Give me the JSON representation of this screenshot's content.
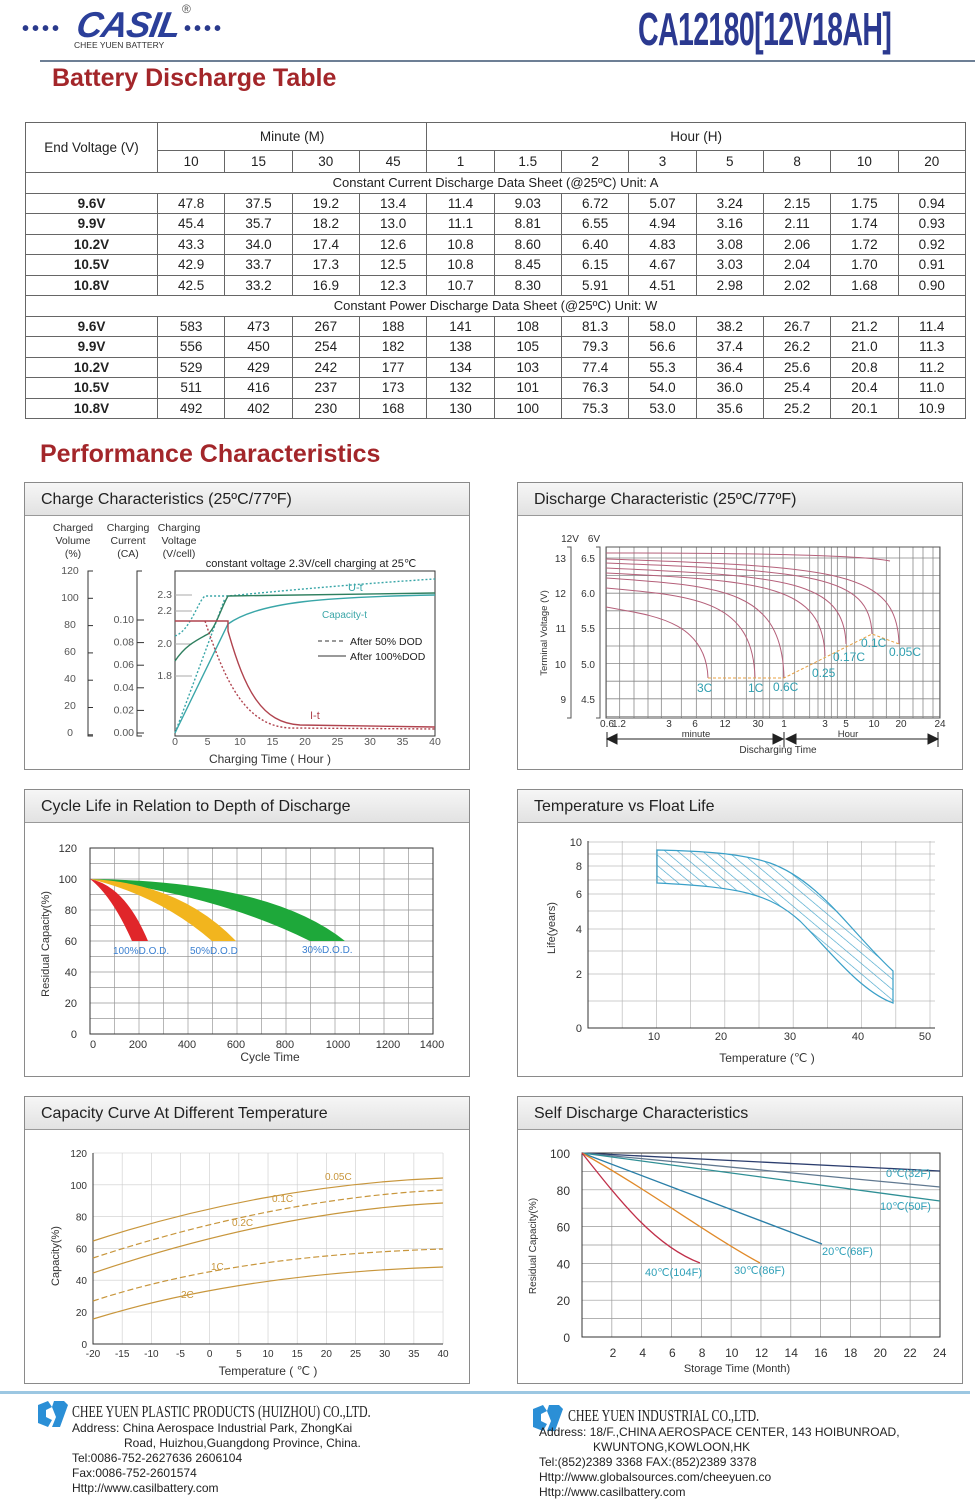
{
  "header": {
    "brand": "CASIL",
    "brand_sub": "CHEE YUEN BATTERY",
    "registered": "®",
    "model": "CA12180[12V18AH]"
  },
  "discharge_table": {
    "title": "Battery Discharge Table",
    "end_voltage_label": "End Voltage  (V)",
    "minute_label": "Minute (M)",
    "hour_label": "Hour (H)",
    "minute_columns": [
      "10",
      "15",
      "30",
      "45"
    ],
    "hour_columns": [
      "1",
      "1.5",
      "2",
      "3",
      "5",
      "8",
      "10",
      "20"
    ],
    "sections": [
      {
        "title": "Constant Current Discharge Data Sheet   (@25ºC)   Unit: A",
        "rows": [
          {
            "v": "9.6V",
            "vals": [
              "47.8",
              "37.5",
              "19.2",
              "13.4",
              "11.4",
              "9.03",
              "6.72",
              "5.07",
              "3.24",
              "2.15",
              "1.75",
              "0.94"
            ]
          },
          {
            "v": "9.9V",
            "vals": [
              "45.4",
              "35.7",
              "18.2",
              "13.0",
              "11.1",
              "8.81",
              "6.55",
              "4.94",
              "3.16",
              "2.11",
              "1.74",
              "0.93"
            ]
          },
          {
            "v": "10.2V",
            "vals": [
              "43.3",
              "34.0",
              "17.4",
              "12.6",
              "10.8",
              "8.60",
              "6.40",
              "4.83",
              "3.08",
              "2.06",
              "1.72",
              "0.92"
            ]
          },
          {
            "v": "10.5V",
            "vals": [
              "42.9",
              "33.7",
              "17.3",
              "12.5",
              "10.8",
              "8.45",
              "6.15",
              "4.67",
              "3.03",
              "2.04",
              "1.70",
              "0.91"
            ]
          },
          {
            "v": "10.8V",
            "vals": [
              "42.5",
              "33.2",
              "16.9",
              "12.3",
              "10.7",
              "8.30",
              "5.91",
              "4.51",
              "2.98",
              "2.02",
              "1.68",
              "0.90"
            ]
          }
        ]
      },
      {
        "title": "Constant Power Discharge Data Sheet   (@25ºC)   Unit: W",
        "rows": [
          {
            "v": "9.6V",
            "vals": [
              "583",
              "473",
              "267",
              "188",
              "141",
              "108",
              "81.3",
              "58.0",
              "38.2",
              "26.7",
              "21.2",
              "11.4"
            ]
          },
          {
            "v": "9.9V",
            "vals": [
              "556",
              "450",
              "254",
              "182",
              "138",
              "105",
              "79.3",
              "56.6",
              "37.4",
              "26.2",
              "21.0",
              "11.3"
            ]
          },
          {
            "v": "10.2V",
            "vals": [
              "529",
              "429",
              "242",
              "177",
              "134",
              "103",
              "77.4",
              "55.3",
              "36.4",
              "25.6",
              "20.8",
              "11.2"
            ]
          },
          {
            "v": "10.5V",
            "vals": [
              "511",
              "416",
              "237",
              "173",
              "132",
              "101",
              "76.3",
              "54.0",
              "36.0",
              "25.4",
              "20.4",
              "11.0"
            ]
          },
          {
            "v": "10.8V",
            "vals": [
              "492",
              "402",
              "230",
              "168",
              "130",
              "100",
              "75.3",
              "53.0",
              "35.6",
              "25.2",
              "20.1",
              "10.9"
            ]
          }
        ]
      }
    ]
  },
  "performance_title": "Performance Characteristics",
  "charts": {
    "charge": {
      "title": "Charge Characteristics (25ºC/77ºF)",
      "col_heads": [
        [
          "Charged",
          "Volume",
          "(%)"
        ],
        [
          "Charging",
          "Current",
          "(CA)"
        ],
        [
          "Charging",
          "Voltage",
          "(V/cell)"
        ]
      ],
      "note": "constant voltage 2.3V/cell charging at 25℃",
      "volume_ticks": [
        "120",
        "100",
        "80",
        "60",
        "40",
        "20",
        "0"
      ],
      "current_ticks": [
        "0.10",
        "0.08",
        "0.06",
        "0.04",
        "0.02",
        "0.00"
      ],
      "voltage_ticks": [
        "2.3",
        "2.2",
        "2.0",
        "1.8"
      ],
      "x_ticks": [
        "0",
        "5",
        "10",
        "15",
        "20",
        "25",
        "30",
        "35",
        "40"
      ],
      "xlabel": "Charging Time ( Hour )",
      "label_vt": "U-t",
      "label_cap": "Capacity-t",
      "label_it": "I-t",
      "legend": [
        "After 50% DOD",
        "After 100%DOD"
      ]
    },
    "discharge": {
      "title": "Discharge Characteristic (25ºC/77ºF)",
      "head_12v": "12V",
      "head_6v": "6V",
      "y12_ticks": [
        "13",
        "12",
        "11",
        "10",
        "9"
      ],
      "y6_ticks": [
        "6.5",
        "6.0",
        "5.5",
        "5.0",
        "4.5"
      ],
      "ylabel": "Terminal Voltage (V)",
      "x_ticks": [
        "0.6",
        "1.2",
        "3",
        "6",
        "12",
        "30",
        "1",
        "3",
        "5",
        "10",
        "20",
        "24"
      ],
      "minute": "minute",
      "hour": "Hour",
      "xlabel": "Discharging Time",
      "rates": [
        "3C",
        "1C",
        "0.6C",
        "0.25",
        "0.17C",
        "0.1C",
        "0.05C"
      ]
    },
    "cycle": {
      "title": "Cycle Life in Relation to Depth of Discharge",
      "y_ticks": [
        "120",
        "100",
        "80",
        "60",
        "40",
        "20",
        "0"
      ],
      "x_ticks": [
        "0",
        "200",
        "400",
        "600",
        "800",
        "1000",
        "1200",
        "1400"
      ],
      "ylabel": "Residual Capacity(%)",
      "xlabel": "Cycle Time",
      "labels": [
        "100%D.O.D.",
        "50%D.O.D",
        "30%D.O.D."
      ]
    },
    "float": {
      "title": "Temperature vs Float Life",
      "y_ticks": [
        "10",
        "8",
        "6",
        "4",
        "2",
        "0"
      ],
      "x_ticks": [
        "10",
        "20",
        "30",
        "40",
        "50"
      ],
      "ylabel": "Life(years)",
      "xlabel": "Temperature (℃ )"
    },
    "capacity": {
      "title": "Capacity Curve At Different Temperature",
      "y_ticks": [
        "120",
        "100",
        "80",
        "60",
        "40",
        "20",
        "0"
      ],
      "x_ticks": [
        "-20",
        "-15",
        "-10",
        "-5",
        "0",
        "5",
        "10",
        "15",
        "20",
        "25",
        "30",
        "35",
        "40"
      ],
      "ylabel": "Capacity(%)",
      "xlabel": "Temperature ( ℃ )",
      "labels": [
        "0.05C",
        "0.1C",
        "0.2C",
        "1C",
        "2C"
      ]
    },
    "self": {
      "title": "Self Discharge Characteristics",
      "y_ticks": [
        "100",
        "80",
        "60",
        "40",
        "20",
        "0"
      ],
      "x_ticks": [
        "2",
        "4",
        "6",
        "8",
        "10",
        "12",
        "14",
        "16",
        "18",
        "20",
        "22",
        "24"
      ],
      "ylabel": "Residual Capacity(%)",
      "xlabel": "Storage Time (Month)",
      "labels": [
        "0℃(32F)",
        "10℃(50F)",
        "20℃(68F)",
        "30℃(86F)",
        "40℃(104F)"
      ]
    }
  },
  "footer": {
    "left": {
      "company": "CHEE  YUEN  PLASTIC  PRODUCTS (HUIZHOU)  CO.,LTD.",
      "address1": "Address: China Aerospace Industrial Park, ZhongKai",
      "address2": "Road, Huizhou,Guangdong Province, China.",
      "tel": "Tel:0086-752-2627636    2606104",
      "fax": "Fax:0086-752-2601574",
      "web": "Http://www.casilbattery.com"
    },
    "right": {
      "company": "CHEE  YUEN  INDUSTRIAL  CO.,LTD.",
      "address1": "Address: 18/F.,CHINA AEROSPACE  CENTER, 143 HOIBUNROAD,",
      "address2": "KWUNTONG,KOWLOON,HK",
      "tel": "Tel:(852)2389 3368     FAX:(852)2389 3378",
      "web1": "Http://www.globalsources.com/cheeyuen.co",
      "web2": "Http://www.casilbattery.com"
    }
  }
}
